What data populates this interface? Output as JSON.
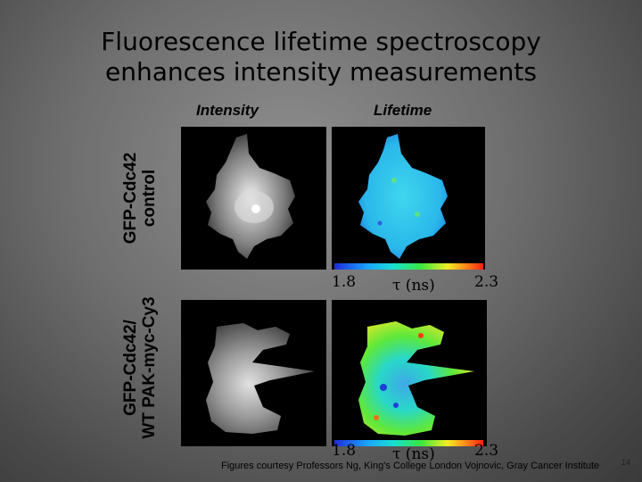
{
  "slide": {
    "title_line1": "Fluorescence lifetime spectroscopy",
    "title_line2": "enhances intensity measurements",
    "column_headers": {
      "intensity": "Intensity",
      "lifetime": "Lifetime"
    },
    "rows": [
      {
        "label_line1": "GFP-Cdc42",
        "label_line2": "control"
      },
      {
        "label_line1": "GFP-Cdc42/",
        "label_line2": "WT PAK-myc-Cy3"
      }
    ],
    "colorbar": {
      "min": "1.8",
      "unit": "τ (ns)",
      "max": "2.3"
    },
    "footer": "Figures courtesy Professors Ng, King’s College London Vojnovic, Gray Cancer Institute",
    "slide_number": "14"
  }
}
